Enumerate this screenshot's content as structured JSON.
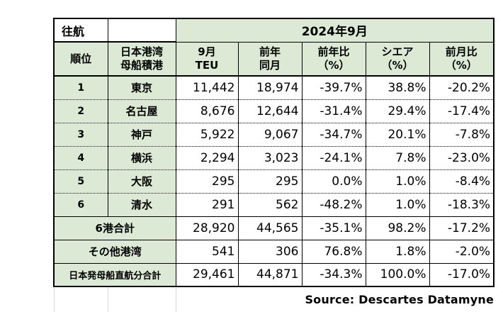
{
  "header": {
    "direction_label": "往航",
    "period": "2024年9月"
  },
  "columns": {
    "rank": "順位",
    "port_line1": "日本港湾",
    "port_line2": "母船積港",
    "month_line1": "9月",
    "month_line2": "TEU",
    "prev_line1": "前年",
    "prev_line2": "同月",
    "yoy_line1": "前年比",
    "yoy_line2": "（%）",
    "share_line1": "シエア",
    "share_line2": "（%）",
    "mom_line1": "前月比",
    "mom_line2": "（%）"
  },
  "rows": [
    {
      "rank": "1",
      "port": "東京",
      "teu": "11,442",
      "prev": "18,974",
      "yoy": "-39.7%",
      "share": "38.8%",
      "mom": "-20.2%"
    },
    {
      "rank": "2",
      "port": "名古屋",
      "teu": "8,676",
      "prev": "12,644",
      "yoy": "-31.4%",
      "share": "29.4%",
      "mom": "-17.4%"
    },
    {
      "rank": "3",
      "port": "神戸",
      "teu": "5,922",
      "prev": "9,067",
      "yoy": "-34.7%",
      "share": "20.1%",
      "mom": "-7.8%"
    },
    {
      "rank": "4",
      "port": "横浜",
      "teu": "2,294",
      "prev": "3,023",
      "yoy": "-24.1%",
      "share": "7.8%",
      "mom": "-23.0%"
    },
    {
      "rank": "5",
      "port": "大阪",
      "teu": "295",
      "prev": "295",
      "yoy": "0.0%",
      "share": "1.0%",
      "mom": "-8.4%"
    },
    {
      "rank": "6",
      "port": "清水",
      "teu": "291",
      "prev": "562",
      "yoy": "-48.2%",
      "share": "1.0%",
      "mom": "-18.3%"
    }
  ],
  "totals": [
    {
      "label": "6港合計",
      "teu": "28,920",
      "prev": "44,565",
      "yoy": "-35.1%",
      "share": "98.2%",
      "mom": "-17.2%"
    },
    {
      "label": "その他港湾",
      "teu": "541",
      "prev": "306",
      "yoy": "76.8%",
      "share": "1.8%",
      "mom": "-2.0%"
    },
    {
      "label": "日本発母船直航分合計",
      "teu": "29,461",
      "prev": "44,871",
      "yoy": "-34.3%",
      "share": "100.0%",
      "mom": "-17.0%"
    }
  ],
  "source": "Source:  Descartes Datamyne"
}
